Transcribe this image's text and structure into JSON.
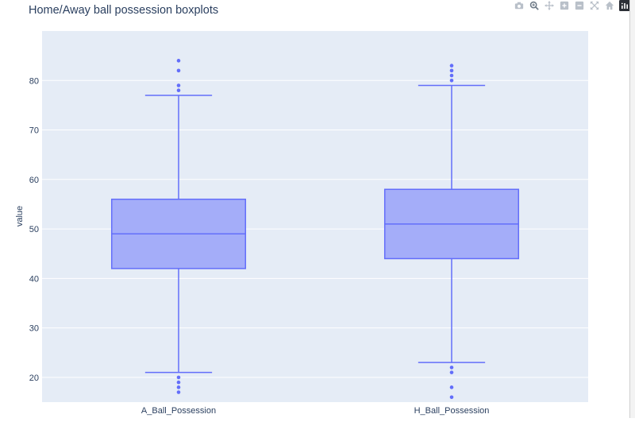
{
  "modebar": {
    "icons": [
      "camera-icon",
      "zoom-icon",
      "pan-icon",
      "zoom-in-icon",
      "zoom-out-icon",
      "autoscale-icon",
      "reset-axes-icon",
      "plotly-logo-icon"
    ]
  },
  "chart_data": {
    "type": "box",
    "title": "Home/Away ball possession boxplots",
    "xlabel": "",
    "ylabel": "value",
    "categories": [
      "A_Ball_Possession",
      "H_Ball_Possession"
    ],
    "ylim": [
      15,
      90
    ],
    "yticks": [
      20,
      30,
      40,
      50,
      60,
      70,
      80
    ],
    "grid": true,
    "colors": {
      "box_fill": "#a4adf9",
      "box_line": "#636efa",
      "plot_bg": "#e5ecf6",
      "title": "#2a3f5f"
    },
    "series": [
      {
        "category": "A_Ball_Possession",
        "lower_fence": 21,
        "q1": 42,
        "median": 49,
        "q3": 56,
        "upper_fence": 77,
        "outliers": [
          17,
          18,
          19,
          20,
          78,
          79,
          82,
          84
        ]
      },
      {
        "category": "H_Ball_Possession",
        "lower_fence": 23,
        "q1": 44,
        "median": 51,
        "q3": 58,
        "upper_fence": 79,
        "outliers": [
          16,
          18,
          21,
          22,
          80,
          81,
          82,
          83
        ]
      }
    ]
  }
}
